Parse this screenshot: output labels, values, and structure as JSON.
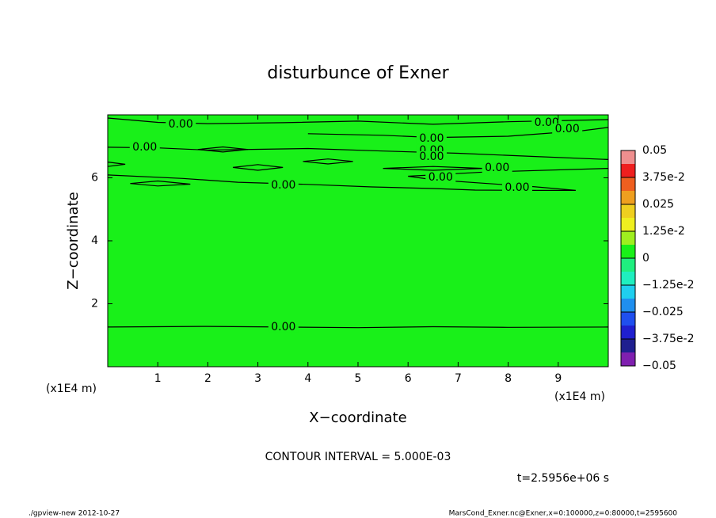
{
  "chart_data": {
    "type": "contour",
    "title": "disturbunce of Exner",
    "x_label": "X−coordinate",
    "y_label": "Z−coordinate",
    "x_unit_left": "(x1E4 m)",
    "x_unit_right": "(x1E4 m)",
    "xlim": [
      0,
      10
    ],
    "ylim": [
      0,
      8
    ],
    "xticks": [
      1,
      2,
      3,
      4,
      5,
      6,
      7,
      8,
      9
    ],
    "yticks": [
      2,
      4,
      6
    ],
    "field_color": "#19f019",
    "contours": [
      {
        "level": 0,
        "x": [
          0,
          2,
          3.5,
          5,
          6.5,
          8,
          10
        ],
        "y": [
          1.26,
          1.28,
          1.26,
          1.24,
          1.27,
          1.25,
          1.26
        ]
      },
      {
        "level": 0,
        "x": [
          0,
          1.5,
          2.6,
          4,
          5.28,
          6.5,
          7.34,
          8.5,
          9.35,
          8.5,
          7.5,
          6.5,
          6,
          7.5,
          10
        ],
        "y": [
          6.09,
          5.98,
          5.86,
          5.79,
          5.71,
          5.66,
          5.61,
          5.6,
          5.6,
          5.72,
          5.83,
          5.94,
          6.05,
          6.18,
          6.3
        ]
      },
      {
        "level": 0,
        "x": [
          0,
          1.0,
          2.0,
          3.5,
          5.0,
          6.5,
          8.0,
          10
        ],
        "y": [
          7.9,
          7.76,
          7.72,
          7.75,
          7.8,
          7.7,
          7.78,
          7.85
        ]
      },
      {
        "level": 0,
        "x": [
          0,
          1.0,
          2.0,
          4.0,
          5.5,
          7.0,
          8.5,
          10
        ],
        "y": [
          6.97,
          6.95,
          6.88,
          6.93,
          6.85,
          6.78,
          6.68,
          6.58
        ]
      },
      {
        "level": 0,
        "x": [
          4.0,
          5.5,
          6.5,
          8.0,
          9.5,
          10
        ],
        "y": [
          7.4,
          7.35,
          7.28,
          7.32,
          7.5,
          7.6
        ]
      },
      {
        "level": 0,
        "x": [
          2.5,
          3.0,
          3.5,
          3.0,
          2.5
        ],
        "y": [
          6.33,
          6.42,
          6.33,
          6.24,
          6.33
        ]
      },
      {
        "level": 0,
        "x": [
          3.9,
          4.4,
          4.9,
          4.4,
          3.9
        ],
        "y": [
          6.52,
          6.6,
          6.52,
          6.44,
          6.52
        ]
      },
      {
        "level": 0,
        "x": [
          0.45,
          1.0,
          1.65,
          1.0,
          0.45
        ],
        "y": [
          5.82,
          5.9,
          5.8,
          5.74,
          5.82
        ]
      },
      {
        "level": 0,
        "x": [
          1.8,
          2.3,
          2.8,
          2.3,
          1.8
        ],
        "y": [
          6.9,
          6.98,
          6.9,
          6.82,
          6.9
        ]
      },
      {
        "level": 0,
        "x": [
          0,
          0.35,
          0
        ],
        "y": [
          6.5,
          6.43,
          6.36
        ]
      },
      {
        "level": 0,
        "x": [
          5.5,
          6.5,
          7.5,
          6.5,
          5.5
        ],
        "y": [
          6.3,
          6.36,
          6.3,
          6.24,
          6.3
        ]
      }
    ],
    "contour_labels": [
      {
        "value": 0,
        "label": "0.00",
        "x": 1.46,
        "y": 7.7
      },
      {
        "value": 0,
        "label": "0.00",
        "x": 0.74,
        "y": 6.97
      },
      {
        "value": 0,
        "label": "0.00",
        "x": 3.51,
        "y": 5.76
      },
      {
        "value": 0,
        "label": "0.00",
        "x": 6.47,
        "y": 7.25
      },
      {
        "value": 0,
        "label": "0.00",
        "x": 6.47,
        "y": 6.87
      },
      {
        "value": 0,
        "label": "0.00",
        "x": 6.47,
        "y": 6.67
      },
      {
        "value": 0,
        "label": "0.00",
        "x": 6.65,
        "y": 6.01
      },
      {
        "value": 0,
        "label": "0.00",
        "x": 7.78,
        "y": 6.31
      },
      {
        "value": 0,
        "label": "0.00",
        "x": 8.18,
        "y": 5.69
      },
      {
        "value": 0,
        "label": "0.00",
        "x": 8.77,
        "y": 7.75
      },
      {
        "value": 0,
        "label": "0.00",
        "x": 9.18,
        "y": 7.55
      },
      {
        "value": 0,
        "label": "0.00",
        "x": 3.51,
        "y": 1.26
      }
    ],
    "colorbar": {
      "lim": [
        -0.05,
        0.05
      ],
      "ticks": [
        {
          "value": 0.05,
          "label": "0.05"
        },
        {
          "value": 0.0375,
          "label": "3.75e-2"
        },
        {
          "value": 0.025,
          "label": "0.025"
        },
        {
          "value": 0.0125,
          "label": "1.25e-2"
        },
        0,
        {
          "value": -0.0125,
          "label": "−1.25e-2"
        },
        {
          "value": -0.025,
          "label": "−0.025"
        },
        {
          "value": -0.0375,
          "label": "−3.75e-2"
        },
        {
          "value": -0.05,
          "label": "−0.05"
        }
      ],
      "colors": [
        "#7f1faf",
        "#1f1f8f",
        "#1f1fcf",
        "#1f4fef",
        "#1f8fef",
        "#1fcfef",
        "#1fefbf",
        "#1fef7f",
        "#19f019",
        "#9fef1f",
        "#efef1f",
        "#efcf1f",
        "#ef9f1f",
        "#ef5f1f",
        "#ef1f1f",
        "#ef8f8f"
      ]
    },
    "contour_interval": "CONTOUR INTERVAL = 5.000E-03",
    "time_label": "t=2.5956e+06 s",
    "footer_left": "./gpview-new  2012-10-27",
    "footer_right": "MarsCond_Exner.nc@Exner,x=0:100000,z=0:80000,t=2595600"
  }
}
